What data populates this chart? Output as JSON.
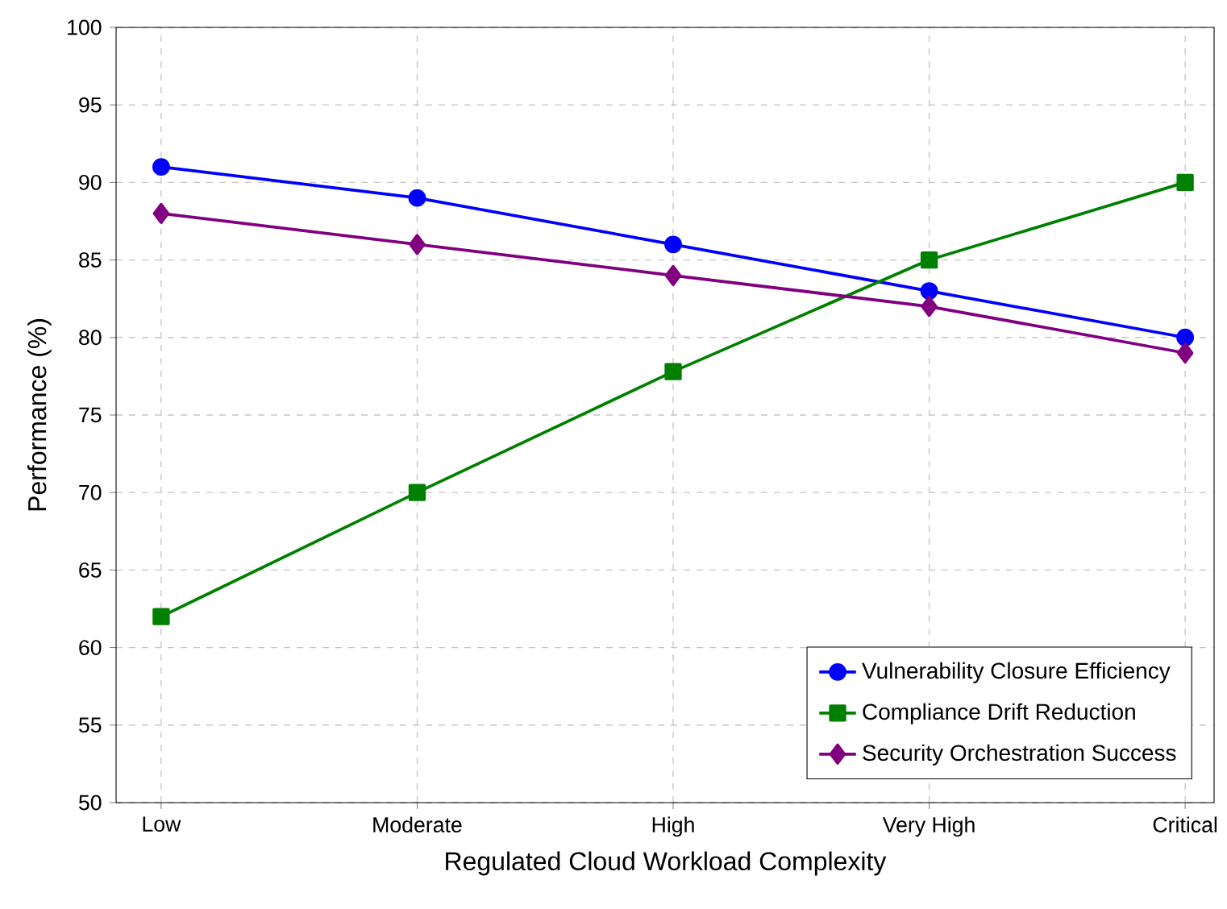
{
  "chart_data": {
    "type": "line",
    "xlabel": "Regulated Cloud Workload Complexity",
    "ylabel": "Performance (%)",
    "categories": [
      "Low",
      "Moderate",
      "High",
      "Very High",
      "Critical"
    ],
    "series": [
      {
        "name": "Vulnerability Closure Efficiency",
        "color": "#0000ff",
        "marker": "circle",
        "values": [
          91,
          89,
          86,
          83,
          80
        ]
      },
      {
        "name": "Compliance Drift Reduction",
        "color": "#008000",
        "marker": "square",
        "values": [
          62,
          70,
          77.8,
          85,
          90
        ]
      },
      {
        "name": "Security Orchestration Success",
        "color": "#800080",
        "marker": "diamond",
        "values": [
          88,
          86,
          84,
          82,
          79
        ]
      }
    ],
    "ylim": [
      50,
      100
    ],
    "yticks": [
      50,
      55,
      60,
      65,
      70,
      75,
      80,
      85,
      90,
      95,
      100
    ],
    "grid": true,
    "legend": "bottom right",
    "line_style": "solid"
  }
}
